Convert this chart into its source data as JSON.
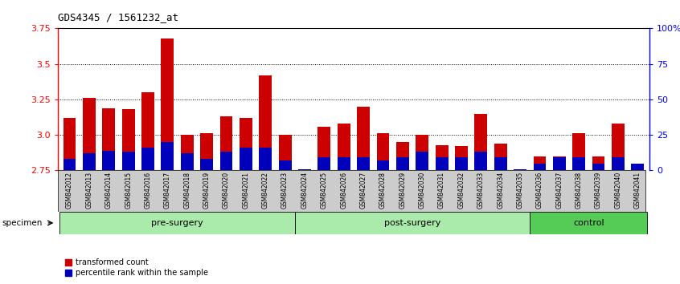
{
  "title": "GDS4345 / 1561232_at",
  "samples": [
    "GSM842012",
    "GSM842013",
    "GSM842014",
    "GSM842015",
    "GSM842016",
    "GSM842017",
    "GSM842018",
    "GSM842019",
    "GSM842020",
    "GSM842021",
    "GSM842022",
    "GSM842023",
    "GSM842024",
    "GSM842025",
    "GSM842026",
    "GSM842027",
    "GSM842028",
    "GSM842029",
    "GSM842030",
    "GSM842031",
    "GSM842032",
    "GSM842033",
    "GSM842034",
    "GSM842035",
    "GSM842036",
    "GSM842037",
    "GSM842038",
    "GSM842039",
    "GSM842040",
    "GSM842041"
  ],
  "red_values": [
    3.12,
    3.26,
    3.19,
    3.18,
    3.3,
    3.68,
    3.0,
    3.01,
    3.13,
    3.12,
    3.42,
    3.0,
    2.76,
    3.06,
    3.08,
    3.2,
    3.01,
    2.95,
    3.0,
    2.93,
    2.92,
    3.15,
    2.94,
    2.76,
    2.85,
    2.85,
    3.01,
    2.85,
    3.08,
    2.8
  ],
  "blue_pct": [
    8,
    12,
    14,
    13,
    16,
    20,
    12,
    8,
    13,
    16,
    16,
    7,
    1,
    9,
    9,
    9,
    7,
    9,
    13,
    9,
    9,
    13,
    9,
    1,
    5,
    9,
    9,
    5,
    9,
    5
  ],
  "ymin": 2.75,
  "ymax": 3.75,
  "yticks": [
    2.75,
    3.0,
    3.25,
    3.5,
    3.75
  ],
  "right_yticks": [
    0,
    25,
    50,
    75,
    100
  ],
  "right_ylabels": [
    "0",
    "25",
    "50",
    "75",
    "100%"
  ],
  "bar_color_red": "#CC0000",
  "bar_color_blue": "#0000BB",
  "tick_label_bg": "#CCCCCC",
  "bar_width": 0.65,
  "legend_red": "transformed count",
  "legend_blue": "percentile rank within the sample",
  "groups": [
    {
      "name": "pre-surgery",
      "start": 0,
      "end": 12,
      "color": "#aaeaaa"
    },
    {
      "name": "post-surgery",
      "start": 12,
      "end": 24,
      "color": "#aaeaaa"
    },
    {
      "name": "control",
      "start": 24,
      "end": 30,
      "color": "#55cc55"
    }
  ]
}
